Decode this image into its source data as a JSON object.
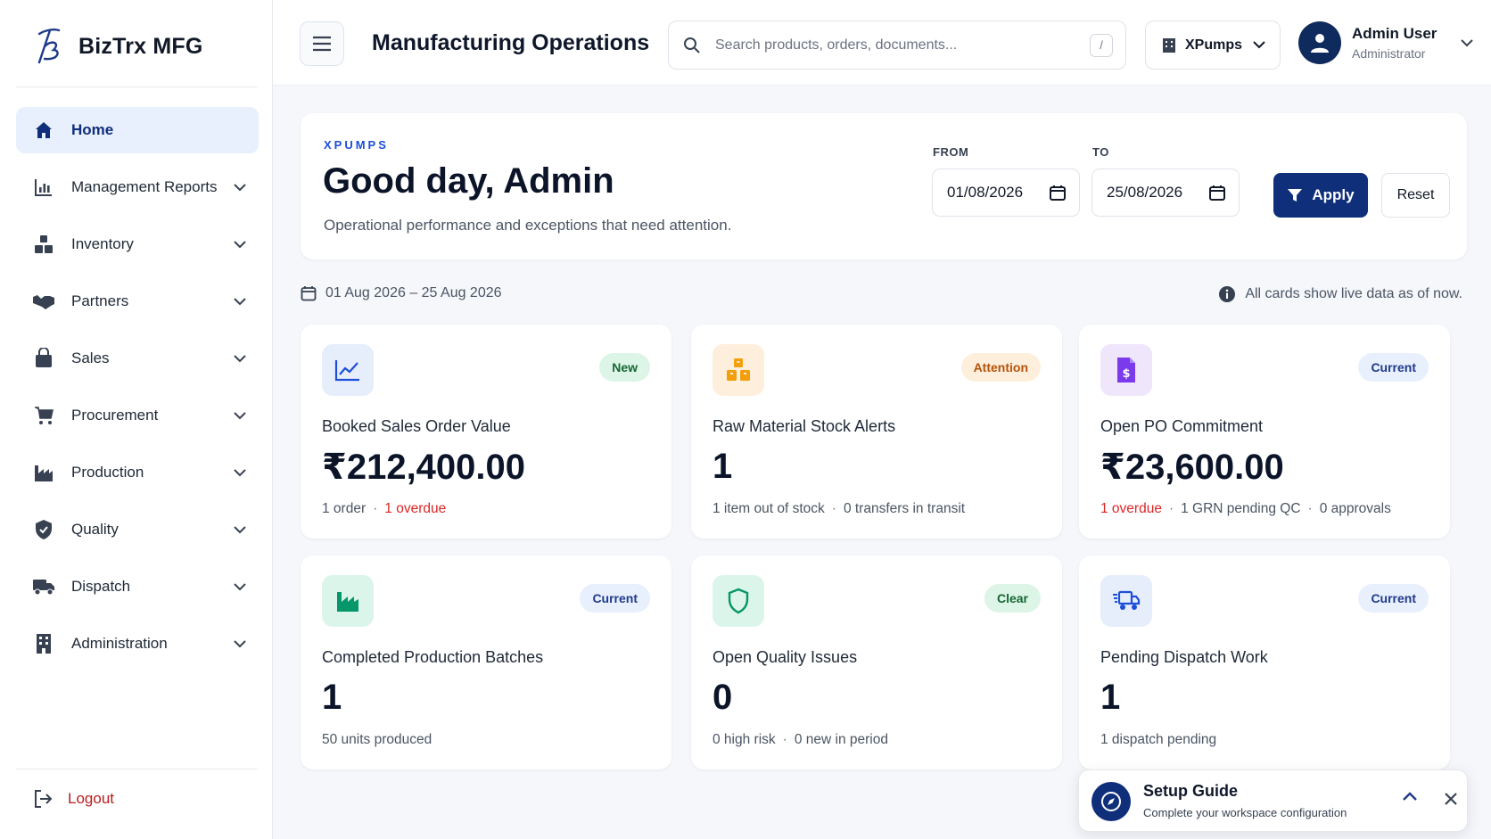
{
  "brand": {
    "name": "BizTrx MFG"
  },
  "sidebar": {
    "items": [
      {
        "label": "Home",
        "icon": "home-icon",
        "active": true
      },
      {
        "label": "Management Reports",
        "icon": "bar-chart-icon"
      },
      {
        "label": "Inventory",
        "icon": "boxes-icon"
      },
      {
        "label": "Partners",
        "icon": "handshake-icon"
      },
      {
        "label": "Sales",
        "icon": "shopping-bag-icon"
      },
      {
        "label": "Procurement",
        "icon": "cart-icon"
      },
      {
        "label": "Production",
        "icon": "factory-icon"
      },
      {
        "label": "Quality",
        "icon": "shield-check-icon"
      },
      {
        "label": "Dispatch",
        "icon": "truck-icon"
      },
      {
        "label": "Administration",
        "icon": "building-icon"
      }
    ],
    "logout_label": "Logout"
  },
  "header": {
    "title": "Manufacturing Operations",
    "search_placeholder": "Search products, orders, documents...",
    "search_shortcut": "/",
    "company": "XPumps",
    "user_name": "Admin User",
    "user_role": "Administrator"
  },
  "welcome": {
    "tag": "XPUMPS",
    "title": "Good day, Admin",
    "subtitle": "Operational performance and exceptions that need attention.",
    "from_label": "FROM",
    "from_value": "01/08/2026",
    "to_label": "TO",
    "to_value": "25/08/2026",
    "apply_label": "Apply",
    "reset_label": "Reset"
  },
  "range": {
    "text": "01 Aug 2026 – 25 Aug 2026",
    "live_note": "All cards show live data as of now."
  },
  "kpis": [
    {
      "label": "Booked Sales Order Value",
      "value": "₹212,400.00",
      "badge": "New",
      "icon": "trend-line-icon",
      "foot": [
        "1 order",
        "1 overdue"
      ],
      "foot_red": [
        false,
        true
      ]
    },
    {
      "label": "Raw Material Stock Alerts",
      "value": "1",
      "badge": "Attention",
      "icon": "stacked-boxes-icon",
      "foot": [
        "1 item out of stock",
        "0 transfers in transit"
      ],
      "foot_red": [
        false,
        false
      ]
    },
    {
      "label": "Open PO Commitment",
      "value": "₹23,600.00",
      "badge": "Current",
      "icon": "invoice-icon",
      "foot": [
        "1 overdue",
        "1 GRN pending QC",
        "0 approvals"
      ],
      "foot_red": [
        true,
        false,
        false
      ]
    },
    {
      "label": "Completed Production Batches",
      "value": "1",
      "badge": "Current",
      "icon": "factory-icon",
      "foot": [
        "50 units produced"
      ],
      "foot_red": [
        false
      ]
    },
    {
      "label": "Open Quality Issues",
      "value": "0",
      "badge": "Clear",
      "icon": "shield-icon",
      "foot": [
        "0 high risk",
        "0 new in period"
      ],
      "foot_red": [
        false,
        false
      ]
    },
    {
      "label": "Pending Dispatch Work",
      "value": "1",
      "badge": "Current",
      "icon": "fast-truck-icon",
      "foot": [
        "1 dispatch pending"
      ],
      "foot_red": [
        false
      ]
    }
  ],
  "guide": {
    "title": "Setup Guide",
    "subtitle": "Complete your workspace configuration"
  },
  "colors": {
    "primary": "#0f2f7a",
    "active_bg": "#e8effd",
    "danger": "#dc2626"
  }
}
